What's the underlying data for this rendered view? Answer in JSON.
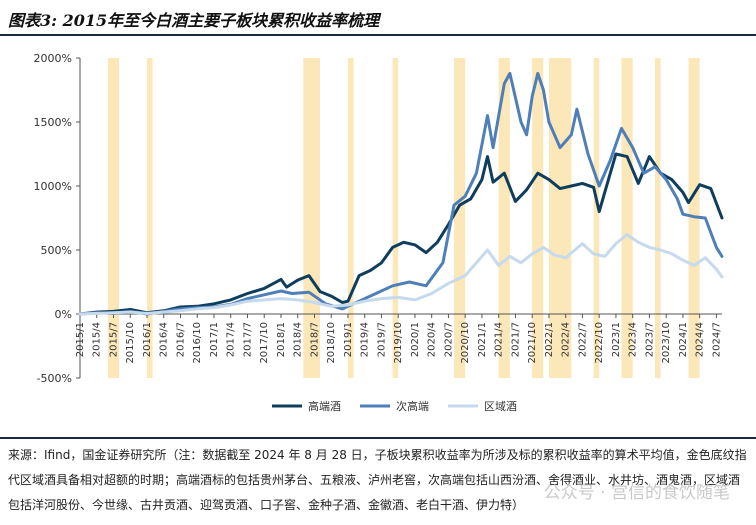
{
  "header": {
    "title": "图表3: 2015年至今白酒主要子板块累积收益率梳理"
  },
  "source": {
    "text": "来源：Ifind，国金证券研究所（注：数据截至 2024 年 8 月 28 日，子板块累积收益率为所涉及标的累积收益率的算术平均值，金色底纹指代区域酒具备相对超额的时期；高端酒标的包括贵州茅台、五粮液、泸州老窖，次高端包括山西汾酒、舍得酒业、水井坊、酒鬼酒，区域酒包括洋河股份、今世缘、古井贡酒、迎驾贡酒、口子窖、金种子酒、金徽酒、老白干酒、伊力特）"
  },
  "watermark": {
    "text": "公众号 · 宫信的食饮随笔"
  },
  "colors": {
    "high_end": "#0f3d5e",
    "sub_high_end": "#4f7fb8",
    "regional": "#c6daee",
    "shading": "#fbe7b8",
    "axis": "#555555"
  },
  "chart_data": {
    "type": "line",
    "title": "",
    "xlabel": "",
    "ylabel": "",
    "ylim": [
      -500,
      2000
    ],
    "yticks": [
      -500,
      0,
      500,
      1000,
      1500,
      2000
    ],
    "ytick_labels": [
      "-500%",
      "0%",
      "500%",
      "1000%",
      "1500%",
      "2000%"
    ],
    "x_tick_labels": [
      "2015/1",
      "2015/4",
      "2015/7",
      "2015/10",
      "2016/1",
      "2016/4",
      "2016/7",
      "2016/10",
      "2017/1",
      "2017/4",
      "2017/7",
      "2017/10",
      "2018/1",
      "2018/4",
      "2018/7",
      "2018/10",
      "2019/1",
      "2019/4",
      "2019/7",
      "2019/10",
      "2020/1",
      "2020/4",
      "2020/7",
      "2020/10",
      "2021/1",
      "2021/4",
      "2021/7",
      "2021/10",
      "2022/1",
      "2022/4",
      "2022/7",
      "2022/10",
      "2023/1",
      "2023/4",
      "2023/7",
      "2023/10",
      "2024/1",
      "2024/4",
      "2024/7"
    ],
    "x_start": "2015-01",
    "x_end": "2024-08",
    "shaded_periods": [
      [
        "2015-06",
        "2015-08"
      ],
      [
        "2016-01",
        "2016-02"
      ],
      [
        "2018-05",
        "2018-08"
      ],
      [
        "2019-01",
        "2019-02"
      ],
      [
        "2019-09",
        "2019-10"
      ],
      [
        "2020-08",
        "2020-10"
      ],
      [
        "2021-04",
        "2021-06"
      ],
      [
        "2021-10",
        "2021-12"
      ],
      [
        "2022-01",
        "2022-05"
      ],
      [
        "2022-09",
        "2022-10"
      ],
      [
        "2023-02",
        "2023-04"
      ],
      [
        "2023-08",
        "2023-09"
      ],
      [
        "2024-02",
        "2024-04"
      ]
    ],
    "legend_position": "bottom",
    "grid": false,
    "series": [
      {
        "name": "高端酒",
        "color": "#0f3d5e",
        "points": [
          [
            "2015-01",
            0
          ],
          [
            "2015-04",
            15
          ],
          [
            "2015-07",
            20
          ],
          [
            "2015-10",
            35
          ],
          [
            "2016-01",
            10
          ],
          [
            "2016-04",
            25
          ],
          [
            "2016-07",
            55
          ],
          [
            "2016-10",
            60
          ],
          [
            "2017-01",
            80
          ],
          [
            "2017-04",
            110
          ],
          [
            "2017-07",
            160
          ],
          [
            "2017-10",
            200
          ],
          [
            "2018-01",
            270
          ],
          [
            "2018-02",
            210
          ],
          [
            "2018-04",
            265
          ],
          [
            "2018-06",
            300
          ],
          [
            "2018-08",
            175
          ],
          [
            "2018-10",
            140
          ],
          [
            "2018-12",
            90
          ],
          [
            "2019-01",
            100
          ],
          [
            "2019-03",
            300
          ],
          [
            "2019-05",
            340
          ],
          [
            "2019-07",
            400
          ],
          [
            "2019-09",
            520
          ],
          [
            "2019-11",
            560
          ],
          [
            "2020-01",
            540
          ],
          [
            "2020-03",
            480
          ],
          [
            "2020-05",
            560
          ],
          [
            "2020-07",
            700
          ],
          [
            "2020-09",
            850
          ],
          [
            "2020-11",
            900
          ],
          [
            "2021-01",
            1050
          ],
          [
            "2021-02",
            1230
          ],
          [
            "2021-03",
            1030
          ],
          [
            "2021-05",
            1100
          ],
          [
            "2021-07",
            880
          ],
          [
            "2021-09",
            970
          ],
          [
            "2021-11",
            1100
          ],
          [
            "2022-01",
            1050
          ],
          [
            "2022-03",
            980
          ],
          [
            "2022-05",
            1000
          ],
          [
            "2022-07",
            1020
          ],
          [
            "2022-09",
            990
          ],
          [
            "2022-10",
            800
          ],
          [
            "2022-12",
            1100
          ],
          [
            "2023-01",
            1250
          ],
          [
            "2023-03",
            1230
          ],
          [
            "2023-05",
            1020
          ],
          [
            "2023-07",
            1230
          ],
          [
            "2023-09",
            1100
          ],
          [
            "2023-11",
            1050
          ],
          [
            "2024-01",
            950
          ],
          [
            "2024-02",
            870
          ],
          [
            "2024-04",
            1010
          ],
          [
            "2024-06",
            980
          ],
          [
            "2024-08",
            750
          ]
        ]
      },
      {
        "name": "次高端",
        "color": "#4f7fb8",
        "points": [
          [
            "2015-01",
            0
          ],
          [
            "2015-04",
            10
          ],
          [
            "2015-07",
            5
          ],
          [
            "2015-10",
            20
          ],
          [
            "2016-01",
            0
          ],
          [
            "2016-04",
            20
          ],
          [
            "2016-07",
            40
          ],
          [
            "2016-10",
            50
          ],
          [
            "2017-01",
            55
          ],
          [
            "2017-04",
            75
          ],
          [
            "2017-07",
            120
          ],
          [
            "2017-10",
            150
          ],
          [
            "2018-01",
            180
          ],
          [
            "2018-03",
            160
          ],
          [
            "2018-06",
            170
          ],
          [
            "2018-09",
            80
          ],
          [
            "2018-12",
            40
          ],
          [
            "2019-03",
            100
          ],
          [
            "2019-06",
            160
          ],
          [
            "2019-09",
            220
          ],
          [
            "2019-12",
            250
          ],
          [
            "2020-03",
            220
          ],
          [
            "2020-06",
            400
          ],
          [
            "2020-08",
            850
          ],
          [
            "2020-10",
            920
          ],
          [
            "2020-12",
            1100
          ],
          [
            "2021-02",
            1550
          ],
          [
            "2021-03",
            1300
          ],
          [
            "2021-05",
            1800
          ],
          [
            "2021-06",
            1880
          ],
          [
            "2021-08",
            1500
          ],
          [
            "2021-09",
            1400
          ],
          [
            "2021-10",
            1700
          ],
          [
            "2021-11",
            1880
          ],
          [
            "2021-12",
            1750
          ],
          [
            "2022-01",
            1500
          ],
          [
            "2022-03",
            1300
          ],
          [
            "2022-05",
            1400
          ],
          [
            "2022-06",
            1600
          ],
          [
            "2022-08",
            1250
          ],
          [
            "2022-10",
            1000
          ],
          [
            "2022-12",
            1200
          ],
          [
            "2023-02",
            1450
          ],
          [
            "2023-04",
            1300
          ],
          [
            "2023-06",
            1100
          ],
          [
            "2023-08",
            1150
          ],
          [
            "2023-10",
            1050
          ],
          [
            "2023-12",
            900
          ],
          [
            "2024-01",
            780
          ],
          [
            "2024-03",
            760
          ],
          [
            "2024-05",
            750
          ],
          [
            "2024-07",
            520
          ],
          [
            "2024-08",
            450
          ]
        ]
      },
      {
        "name": "区域酒",
        "color": "#c6daee",
        "points": [
          [
            "2015-01",
            0
          ],
          [
            "2015-04",
            5
          ],
          [
            "2015-07",
            10
          ],
          [
            "2015-10",
            15
          ],
          [
            "2016-01",
            5
          ],
          [
            "2016-04",
            15
          ],
          [
            "2016-07",
            25
          ],
          [
            "2016-10",
            40
          ],
          [
            "2017-01",
            50
          ],
          [
            "2017-04",
            70
          ],
          [
            "2017-07",
            100
          ],
          [
            "2017-10",
            110
          ],
          [
            "2018-01",
            120
          ],
          [
            "2018-04",
            110
          ],
          [
            "2018-07",
            90
          ],
          [
            "2018-10",
            60
          ],
          [
            "2019-01",
            70
          ],
          [
            "2019-04",
            100
          ],
          [
            "2019-07",
            120
          ],
          [
            "2019-10",
            130
          ],
          [
            "2020-01",
            110
          ],
          [
            "2020-04",
            160
          ],
          [
            "2020-07",
            240
          ],
          [
            "2020-10",
            300
          ],
          [
            "2020-12",
            400
          ],
          [
            "2021-02",
            500
          ],
          [
            "2021-04",
            380
          ],
          [
            "2021-06",
            450
          ],
          [
            "2021-08",
            400
          ],
          [
            "2021-10",
            470
          ],
          [
            "2021-12",
            520
          ],
          [
            "2022-02",
            460
          ],
          [
            "2022-04",
            440
          ],
          [
            "2022-07",
            550
          ],
          [
            "2022-09",
            470
          ],
          [
            "2022-11",
            450
          ],
          [
            "2023-01",
            550
          ],
          [
            "2023-03",
            620
          ],
          [
            "2023-05",
            560
          ],
          [
            "2023-07",
            520
          ],
          [
            "2023-09",
            500
          ],
          [
            "2023-11",
            470
          ],
          [
            "2024-01",
            420
          ],
          [
            "2024-03",
            380
          ],
          [
            "2024-05",
            440
          ],
          [
            "2024-07",
            350
          ],
          [
            "2024-08",
            290
          ]
        ]
      }
    ]
  }
}
